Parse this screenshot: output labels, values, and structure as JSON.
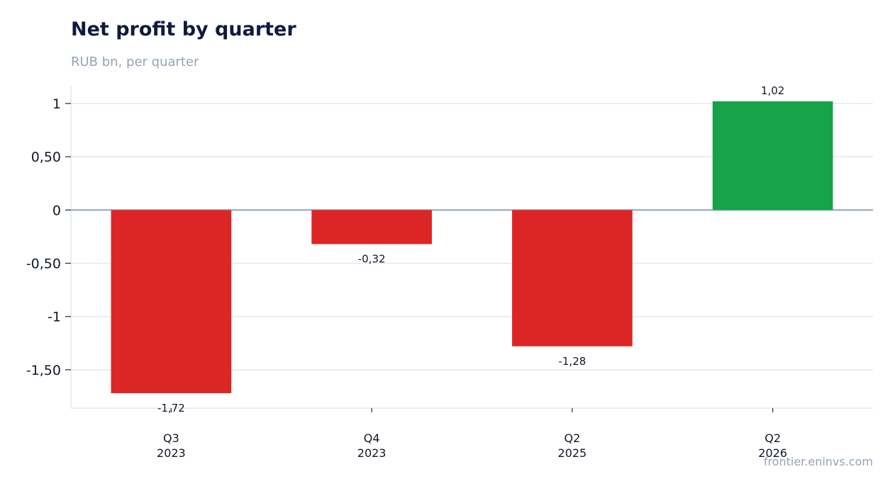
{
  "title": "Net profit by quarter",
  "subtitle": "RUB bn, per quarter",
  "source": "frontier.eninvs.com",
  "colors": {
    "negative": "#dc2626",
    "positive": "#16a34a",
    "grid": "#e2e8f0",
    "zero_line": "#94a3b8",
    "title": "#0f1b3d",
    "muted": "#94a3b8"
  },
  "chart_data": {
    "type": "bar",
    "categories": [
      [
        "Q3",
        "2023"
      ],
      [
        "Q4",
        "2023"
      ],
      [
        "Q2",
        "2025"
      ],
      [
        "Q2",
        "2026"
      ]
    ],
    "values": [
      -1.72,
      -0.32,
      -1.28,
      1.02
    ],
    "data_labels": [
      "-1,72",
      "-0,32",
      "-1,28",
      "1,02"
    ],
    "yticks": [
      1,
      0.5,
      0,
      -0.5,
      -1,
      -1.5
    ],
    "ytick_labels": [
      "1",
      "0,50",
      "0",
      "-0,50",
      "-1",
      "-1,50"
    ],
    "ylim": [
      -1.86,
      1.16
    ],
    "grid": true,
    "legend": "none"
  }
}
